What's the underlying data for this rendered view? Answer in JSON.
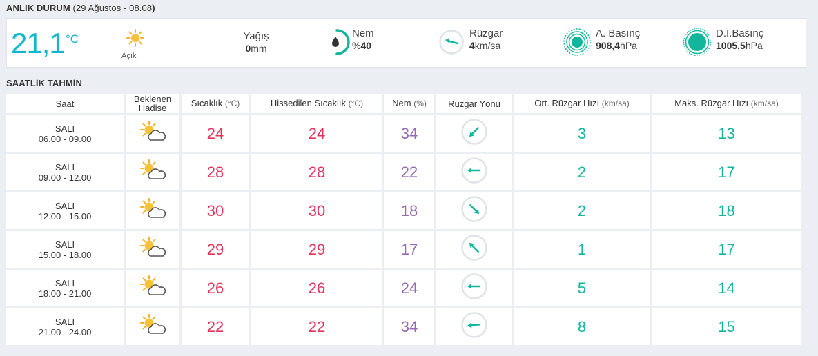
{
  "current": {
    "title_bold": "ANLIK DURUM",
    "title_paren_open": " (",
    "title_date": "29 Ağustos - 08.08",
    "title_paren_close": ")",
    "temperature": "21,1",
    "temperature_unit": "°C",
    "condition": "Açık",
    "condition_icon": "sun-icon",
    "rain": {
      "label": "Yağış",
      "value": "0",
      "unit": "mm"
    },
    "humidity": {
      "label": "Nem",
      "prefix": "%",
      "value": "40",
      "icon": "humidity-drop-icon",
      "percent": 40
    },
    "wind": {
      "label": "Rüzgar",
      "value": "4",
      "unit": "km/sa",
      "icon": "wind-direction-icon"
    },
    "pressure": {
      "label": "A. Basınç",
      "value": "908,4",
      "unit": "hPa",
      "icon": "pressure-icon"
    },
    "sea_level_pressure": {
      "label": "D.İ.Basınç",
      "value": "1005,5",
      "unit": "hPa",
      "icon": "sea-level-pressure-icon"
    }
  },
  "hourly": {
    "title": "SAATLİK TAHMİN",
    "headers": {
      "time": "Saat",
      "event_line1": "Beklenen",
      "event_line2": "Hadise",
      "temp": "Sıcaklık",
      "temp_unit": "(°C)",
      "feels": "Hissedilen Sıcaklık",
      "feels_unit": "(°C)",
      "humidity": "Nem",
      "humidity_unit": "(%)",
      "wind_dir": "Rüzgar Yönü",
      "avg_wind": "Ort. Rüzgar Hızı",
      "avg_wind_unit": "(km/sa)",
      "max_wind": "Maks. Rüzgar Hızı",
      "max_wind_unit": "(km/sa)"
    },
    "rows": [
      {
        "day": "SALI",
        "range": "06.00 - 09.00",
        "icon": "partly-cloudy-icon",
        "temp": "24",
        "feels": "24",
        "humidity": "34",
        "wind_dir_deg": 225,
        "avg_wind": "3",
        "max_wind": "13"
      },
      {
        "day": "SALI",
        "range": "09.00 - 12.00",
        "icon": "partly-cloudy-icon",
        "temp": "28",
        "feels": "28",
        "humidity": "22",
        "wind_dir_deg": 270,
        "avg_wind": "2",
        "max_wind": "17"
      },
      {
        "day": "SALI",
        "range": "12.00 - 15.00",
        "icon": "partly-cloudy-icon",
        "temp": "30",
        "feels": "30",
        "humidity": "18",
        "wind_dir_deg": 135,
        "avg_wind": "2",
        "max_wind": "18"
      },
      {
        "day": "SALI",
        "range": "15.00 - 18.00",
        "icon": "partly-cloudy-icon",
        "temp": "29",
        "feels": "29",
        "humidity": "17",
        "wind_dir_deg": 315,
        "avg_wind": "1",
        "max_wind": "17"
      },
      {
        "day": "SALI",
        "range": "18.00 - 21.00",
        "icon": "partly-cloudy-icon",
        "temp": "26",
        "feels": "26",
        "humidity": "24",
        "wind_dir_deg": 270,
        "avg_wind": "5",
        "max_wind": "14"
      },
      {
        "day": "SALI",
        "range": "21.00 - 24.00",
        "icon": "partly-cloudy-icon",
        "temp": "22",
        "feels": "22",
        "humidity": "34",
        "wind_dir_deg": 265,
        "avg_wind": "8",
        "max_wind": "15"
      }
    ]
  },
  "colors": {
    "accent": "#12b5ce",
    "temperature": "#e5325b",
    "humidity": "#9668b8",
    "wind": "#11b69c",
    "sun": "#f5b320"
  }
}
